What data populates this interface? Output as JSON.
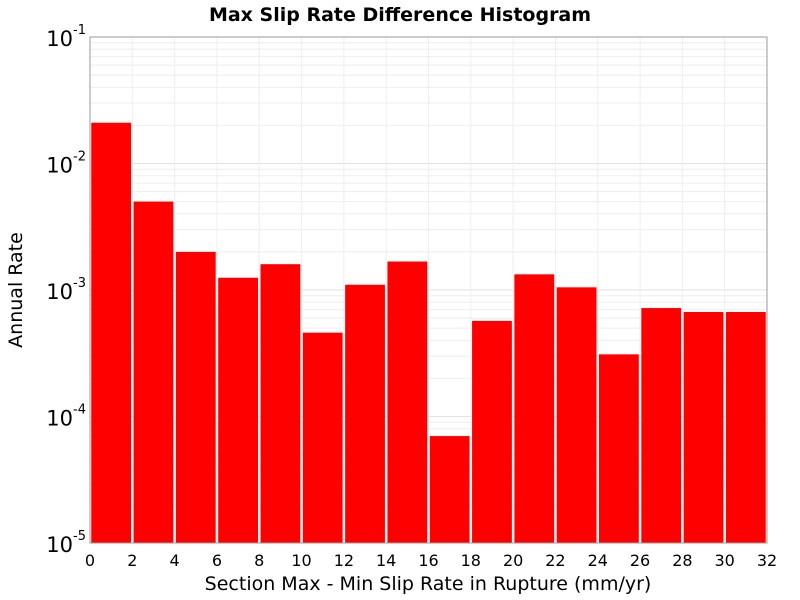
{
  "chart_data": {
    "type": "bar",
    "title": "Max Slip Rate Difference Histogram",
    "xlabel": "Section Max - Min Slip Rate in Rupture (mm/yr)",
    "ylabel": "Annual Rate",
    "xlim": [
      0,
      32
    ],
    "ylim": [
      1e-05,
      0.1
    ],
    "yscale": "log",
    "bin_width": 2,
    "bar_color": "#ff0000",
    "grid": true,
    "x_ticks": [
      "0",
      "2",
      "4",
      "6",
      "8",
      "10",
      "12",
      "14",
      "16",
      "18",
      "20",
      "22",
      "24",
      "26",
      "28",
      "30",
      "32"
    ],
    "y_ticks": [
      {
        "base": "10",
        "exp": "-5"
      },
      {
        "base": "10",
        "exp": "-4"
      },
      {
        "base": "10",
        "exp": "-3"
      },
      {
        "base": "10",
        "exp": "-2"
      },
      {
        "base": "10",
        "exp": "-1"
      }
    ],
    "bins": [
      {
        "x_start": 0,
        "value": 0.021
      },
      {
        "x_start": 2,
        "value": 0.005
      },
      {
        "x_start": 4,
        "value": 0.002
      },
      {
        "x_start": 6,
        "value": 0.00125
      },
      {
        "x_start": 8,
        "value": 0.0016
      },
      {
        "x_start": 10,
        "value": 0.00046
      },
      {
        "x_start": 12,
        "value": 0.0011
      },
      {
        "x_start": 14,
        "value": 0.00168
      },
      {
        "x_start": 16,
        "value": 7e-05
      },
      {
        "x_start": 18,
        "value": 0.00057
      },
      {
        "x_start": 20,
        "value": 0.00133
      },
      {
        "x_start": 22,
        "value": 0.00105
      },
      {
        "x_start": 24,
        "value": 0.00031
      },
      {
        "x_start": 26,
        "value": 0.00072
      },
      {
        "x_start": 28,
        "value": 0.00067
      },
      {
        "x_start": 30,
        "value": 0.00067
      }
    ]
  }
}
